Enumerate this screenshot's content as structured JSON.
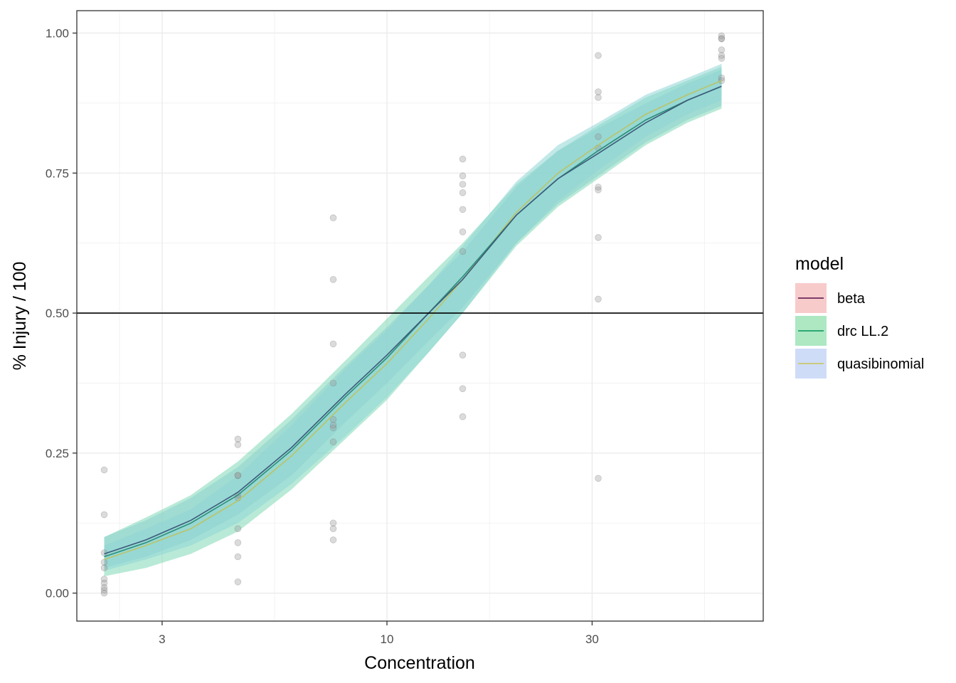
{
  "chart_data": {
    "type": "line",
    "title": "",
    "xlabel": "Concentration",
    "ylabel": "% Injury / 100",
    "x_scale": "log10",
    "xlim": [
      1.9,
      75
    ],
    "ylim": [
      -0.05,
      1.04
    ],
    "x_ticks": [
      {
        "value": 3,
        "label": "3"
      },
      {
        "value": 10,
        "label": "10"
      },
      {
        "value": 30,
        "label": "30"
      }
    ],
    "y_ticks": [
      {
        "value": 0,
        "label": "0.00"
      },
      {
        "value": 0.25,
        "label": "0.25"
      },
      {
        "value": 0.5,
        "label": "0.50"
      },
      {
        "value": 0.75,
        "label": "0.75"
      },
      {
        "value": 1,
        "label": "1.00"
      }
    ],
    "reference_line": {
      "y": 0.5,
      "color": "#000000"
    },
    "grid": true,
    "legend": {
      "title": "model",
      "position": "right",
      "entries": [
        {
          "label": "beta",
          "line_color": "#6b2a5a",
          "fill_color": "#f8cbcb"
        },
        {
          "label": "drc LL.2",
          "line_color": "#1f9e6a",
          "fill_color": "#ade8c3"
        },
        {
          "label": "quasibinomial",
          "line_color": "#c9c96a",
          "fill_color": "#cfdcf7"
        }
      ]
    },
    "series": [
      {
        "name": "beta",
        "line_color": "#3d5a7a",
        "fill_color": "#9ec4ea",
        "x": [
          2.2,
          2.75,
          3.5,
          4.5,
          6,
          8,
          10,
          12.5,
          15,
          20,
          25,
          31,
          40,
          50,
          60
        ],
        "y": [
          0.07,
          0.095,
          0.13,
          0.18,
          0.26,
          0.355,
          0.425,
          0.5,
          0.56,
          0.675,
          0.74,
          0.785,
          0.84,
          0.88,
          0.905
        ],
        "lower": [
          0.045,
          0.065,
          0.095,
          0.14,
          0.21,
          0.305,
          0.375,
          0.45,
          0.51,
          0.625,
          0.695,
          0.745,
          0.805,
          0.845,
          0.87
        ],
        "upper": [
          0.1,
          0.13,
          0.17,
          0.225,
          0.31,
          0.405,
          0.475,
          0.55,
          0.61,
          0.725,
          0.79,
          0.83,
          0.875,
          0.91,
          0.935
        ]
      },
      {
        "name": "drc LL.2",
        "line_color": "#2b8e78",
        "fill_color": "#7fd8b6",
        "x": [
          2.2,
          2.75,
          3.5,
          4.5,
          6,
          8,
          10,
          12.5,
          15,
          20,
          25,
          31,
          40,
          50,
          60
        ],
        "y": [
          0.065,
          0.09,
          0.125,
          0.175,
          0.255,
          0.35,
          0.42,
          0.5,
          0.565,
          0.675,
          0.74,
          0.79,
          0.845,
          0.88,
          0.905
        ],
        "lower": [
          0.03,
          0.045,
          0.07,
          0.11,
          0.185,
          0.275,
          0.345,
          0.43,
          0.5,
          0.62,
          0.69,
          0.74,
          0.8,
          0.84,
          0.865
        ],
        "upper": [
          0.1,
          0.135,
          0.175,
          0.235,
          0.32,
          0.415,
          0.49,
          0.565,
          0.625,
          0.73,
          0.79,
          0.835,
          0.885,
          0.915,
          0.94
        ]
      },
      {
        "name": "quasibinomial",
        "line_color": "#b9c46a",
        "fill_color": "#8fd6d6",
        "x": [
          2.2,
          2.75,
          3.5,
          4.5,
          6,
          8,
          10,
          12.5,
          15,
          20,
          25,
          31,
          40,
          50,
          60
        ],
        "y": [
          0.06,
          0.085,
          0.115,
          0.165,
          0.245,
          0.34,
          0.41,
          0.49,
          0.56,
          0.68,
          0.75,
          0.8,
          0.855,
          0.89,
          0.915
        ],
        "lower": [
          0.04,
          0.06,
          0.085,
          0.125,
          0.195,
          0.28,
          0.35,
          0.43,
          0.5,
          0.625,
          0.7,
          0.755,
          0.815,
          0.855,
          0.88
        ],
        "upper": [
          0.085,
          0.115,
          0.15,
          0.21,
          0.3,
          0.4,
          0.47,
          0.55,
          0.62,
          0.735,
          0.8,
          0.84,
          0.89,
          0.92,
          0.945
        ]
      }
    ],
    "points": {
      "color": "#999999",
      "x": [
        2.2,
        2.2,
        2.2,
        2.2,
        2.2,
        2.2,
        2.2,
        2.2,
        2.2,
        2.2,
        4.5,
        4.5,
        4.5,
        4.5,
        4.5,
        4.5,
        4.5,
        4.5,
        4.5,
        4.5,
        7.5,
        7.5,
        7.5,
        7.5,
        7.5,
        7.5,
        7.5,
        7.5,
        7.5,
        7.5,
        7.5,
        15,
        15,
        15,
        15,
        15,
        15,
        15,
        15,
        15,
        15,
        31,
        31,
        31,
        31,
        31,
        31,
        31,
        31,
        31,
        31,
        60,
        60,
        60,
        60,
        60,
        60,
        60,
        60
      ],
      "y": [
        0.22,
        0.14,
        0.072,
        0.055,
        0.045,
        0.025,
        0.018,
        0.01,
        0.005,
        0.0,
        0.275,
        0.265,
        0.21,
        0.175,
        0.17,
        0.115,
        0.09,
        0.065,
        0.02,
        0.21,
        0.67,
        0.56,
        0.445,
        0.375,
        0.31,
        0.295,
        0.27,
        0.125,
        0.115,
        0.095,
        0.3,
        0.775,
        0.745,
        0.73,
        0.715,
        0.685,
        0.645,
        0.61,
        0.425,
        0.365,
        0.315,
        0.96,
        0.895,
        0.885,
        0.815,
        0.795,
        0.725,
        0.72,
        0.635,
        0.525,
        0.205,
        0.995,
        0.99,
        0.97,
        0.96,
        0.955,
        0.92,
        0.915,
        0.99
      ]
    }
  }
}
